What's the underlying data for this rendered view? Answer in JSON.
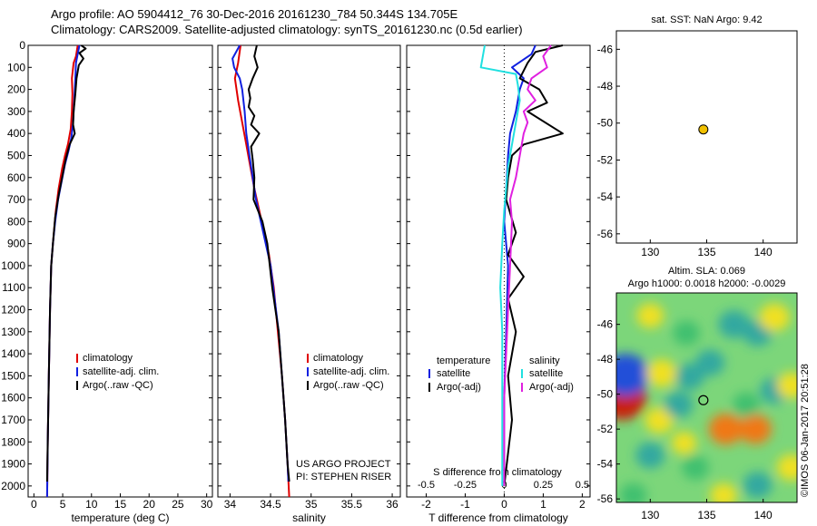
{
  "header": {
    "line1": "Argo profile: AO 5904412_76 30-Dec-2016 20161230_784 50.344S 134.705E",
    "line2": "Climatology: CARS2009. Satellite-adjusted climatology: synTS_20161230.nc (0.5d earlier)"
  },
  "colors": {
    "climatology": "#e00000",
    "satellite": "#1020e0",
    "argo": "#000000",
    "sat_cyan": "#20e0e0",
    "argo_magenta": "#e020e0",
    "marker": "#f0c000"
  },
  "depth_axis": {
    "ticks": [
      0,
      100,
      200,
      300,
      400,
      500,
      600,
      700,
      800,
      900,
      1000,
      1100,
      1200,
      1300,
      1400,
      1500,
      1600,
      1700,
      1800,
      1900,
      2000
    ],
    "range": [
      0,
      2050
    ]
  },
  "chart_data": [
    {
      "type": "line",
      "xlabel": "temperature (deg C)",
      "xlim": [
        -1,
        31
      ],
      "xticks": [
        0,
        5,
        10,
        15,
        20,
        25,
        30
      ],
      "ylim": [
        2050,
        0
      ],
      "legend": [
        "climatology",
        "satellite-adj. clim.",
        "Argo(..raw -QC)"
      ],
      "series": [
        {
          "name": "climatology",
          "points": [
            [
              7.6,
              0
            ],
            [
              7.3,
              50
            ],
            [
              6.9,
              80
            ],
            [
              6.6,
              150
            ],
            [
              6.7,
              220
            ],
            [
              6.6,
              300
            ],
            [
              6.4,
              380
            ],
            [
              5.9,
              450
            ],
            [
              5.4,
              500
            ],
            [
              4.9,
              560
            ],
            [
              4.3,
              650
            ],
            [
              3.8,
              750
            ],
            [
              3.3,
              900
            ],
            [
              3.0,
              1000
            ],
            [
              2.8,
              1200
            ],
            [
              2.6,
              1500
            ],
            [
              2.4,
              1800
            ],
            [
              2.3,
              2050
            ]
          ]
        },
        {
          "name": "satellite-adj. clim.",
          "points": [
            [
              7.9,
              0
            ],
            [
              7.6,
              40
            ],
            [
              7.3,
              80
            ],
            [
              7.2,
              150
            ],
            [
              7.0,
              250
            ],
            [
              6.8,
              350
            ],
            [
              6.5,
              420
            ],
            [
              6.0,
              480
            ],
            [
              5.4,
              540
            ],
            [
              4.8,
              620
            ],
            [
              4.2,
              700
            ],
            [
              3.7,
              800
            ],
            [
              3.3,
              900
            ],
            [
              3.0,
              1000
            ],
            [
              2.8,
              1200
            ],
            [
              2.6,
              1500
            ],
            [
              2.4,
              1800
            ],
            [
              2.3,
              2050
            ]
          ]
        },
        {
          "name": "Argo(..raw -QC)",
          "points": [
            [
              8.2,
              0
            ],
            [
              9.0,
              15
            ],
            [
              7.9,
              35
            ],
            [
              8.6,
              60
            ],
            [
              7.8,
              90
            ],
            [
              7.4,
              150
            ],
            [
              7.2,
              220
            ],
            [
              6.9,
              300
            ],
            [
              6.8,
              360
            ],
            [
              7.1,
              400
            ],
            [
              6.2,
              450
            ],
            [
              5.5,
              520
            ],
            [
              4.9,
              600
            ],
            [
              4.3,
              680
            ],
            [
              3.7,
              780
            ],
            [
              3.3,
              900
            ],
            [
              3.0,
              1000
            ],
            [
              2.8,
              1200
            ],
            [
              2.6,
              1500
            ],
            [
              2.4,
              1800
            ],
            [
              2.3,
              1980
            ]
          ]
        }
      ]
    },
    {
      "type": "line",
      "xlabel": "salinity",
      "xlim": [
        33.85,
        36.1
      ],
      "xticks": [
        34,
        34.5,
        35,
        35.5,
        36
      ],
      "ylim": [
        2050,
        0
      ],
      "legend": [
        "climatology",
        "satellite-adj. clim.",
        "Argo(..raw -QC)"
      ],
      "footer": [
        "US ARGO PROJECT",
        "PI: STEPHEN RISER"
      ],
      "series": [
        {
          "name": "climatology",
          "points": [
            [
              34.13,
              0
            ],
            [
              34.1,
              80
            ],
            [
              34.06,
              150
            ],
            [
              34.1,
              250
            ],
            [
              34.15,
              350
            ],
            [
              34.2,
              450
            ],
            [
              34.25,
              550
            ],
            [
              34.3,
              650
            ],
            [
              34.36,
              750
            ],
            [
              34.42,
              850
            ],
            [
              34.48,
              950
            ],
            [
              34.54,
              1100
            ],
            [
              34.59,
              1300
            ],
            [
              34.64,
              1500
            ],
            [
              34.68,
              1700
            ],
            [
              34.71,
              1900
            ],
            [
              34.73,
              2050
            ]
          ]
        },
        {
          "name": "satellite-adj. clim.",
          "points": [
            [
              34.12,
              0
            ],
            [
              34.03,
              60
            ],
            [
              34.05,
              100
            ],
            [
              34.12,
              150
            ],
            [
              34.15,
              200
            ],
            [
              34.18,
              300
            ],
            [
              34.2,
              400
            ],
            [
              34.24,
              500
            ],
            [
              34.28,
              600
            ],
            [
              34.32,
              700
            ],
            [
              34.38,
              800
            ],
            [
              34.44,
              900
            ],
            [
              34.5,
              1000
            ],
            [
              34.55,
              1150
            ],
            [
              34.6,
              1300
            ],
            [
              34.64,
              1500
            ],
            [
              34.68,
              1700
            ],
            [
              34.71,
              1900
            ],
            [
              34.72,
              1980
            ]
          ]
        },
        {
          "name": "Argo(..raw -QC)",
          "points": [
            [
              34.33,
              0
            ],
            [
              34.3,
              50
            ],
            [
              34.34,
              100
            ],
            [
              34.28,
              150
            ],
            [
              34.23,
              200
            ],
            [
              34.25,
              240
            ],
            [
              34.23,
              280
            ],
            [
              34.3,
              320
            ],
            [
              34.26,
              360
            ],
            [
              34.36,
              400
            ],
            [
              34.26,
              460
            ],
            [
              34.28,
              520
            ],
            [
              34.3,
              600
            ],
            [
              34.29,
              700
            ],
            [
              34.4,
              800
            ],
            [
              34.46,
              900
            ],
            [
              34.49,
              1000
            ],
            [
              34.52,
              1100
            ],
            [
              34.56,
              1200
            ],
            [
              34.6,
              1300
            ],
            [
              34.64,
              1500
            ],
            [
              34.68,
              1700
            ],
            [
              34.71,
              1900
            ],
            [
              34.73,
              1980
            ]
          ]
        }
      ]
    },
    {
      "type": "line",
      "xlabel": "T difference from climatology",
      "xlabel2": "S difference from climatology",
      "xlim": [
        -2.5,
        2.2
      ],
      "xticks": [
        -2,
        -1,
        0,
        1,
        2
      ],
      "xticks_s": [
        -0.5,
        -0.25,
        0,
        0.25,
        0.5
      ],
      "ylim": [
        2050,
        0
      ],
      "legend_groups": [
        {
          "title": "temperature",
          "items": [
            "satellite",
            "Argo(-adj)"
          ]
        },
        {
          "title": "salinity",
          "items": [
            "satellite",
            "Argo(-adj)"
          ]
        }
      ],
      "series": [
        {
          "name": "satellite",
          "group": "temperature",
          "points": [
            [
              0.8,
              0
            ],
            [
              0.7,
              40
            ],
            [
              0.2,
              100
            ],
            [
              0.5,
              150
            ],
            [
              0.4,
              200
            ],
            [
              0.3,
              300
            ],
            [
              0.15,
              400
            ],
            [
              0.1,
              500
            ],
            [
              0.05,
              650
            ],
            [
              0.0,
              800
            ],
            [
              0.1,
              1000
            ],
            [
              0.05,
              1300
            ],
            [
              0.0,
              1600
            ],
            [
              0.0,
              2000
            ]
          ]
        },
        {
          "name": "Argo(-adj)",
          "group": "temperature",
          "points": [
            [
              1.5,
              0
            ],
            [
              0.8,
              30
            ],
            [
              0.6,
              80
            ],
            [
              0.4,
              150
            ],
            [
              0.9,
              200
            ],
            [
              1.1,
              260
            ],
            [
              0.6,
              300
            ],
            [
              1.5,
              400
            ],
            [
              0.5,
              450
            ],
            [
              0.2,
              500
            ],
            [
              0.1,
              600
            ],
            [
              0.05,
              700
            ],
            [
              0.3,
              850
            ],
            [
              0.1,
              950
            ],
            [
              0.5,
              1050
            ],
            [
              0.1,
              1150
            ],
            [
              0.3,
              1300
            ],
            [
              0.1,
              1500
            ],
            [
              0.2,
              1700
            ],
            [
              0.0,
              2000
            ]
          ]
        },
        {
          "name": "satellite",
          "group": "salinity",
          "points": [
            [
              -0.5,
              0
            ],
            [
              -0.6,
              100
            ],
            [
              0.3,
              130
            ],
            [
              0.35,
              180
            ],
            [
              0.4,
              250
            ],
            [
              0.3,
              350
            ],
            [
              0.2,
              450
            ],
            [
              0.1,
              550
            ],
            [
              0.05,
              650
            ],
            [
              0.0,
              750
            ],
            [
              -0.05,
              900
            ],
            [
              -0.1,
              1100
            ],
            [
              -0.05,
              1300
            ],
            [
              -0.05,
              1600
            ],
            [
              -0.05,
              2000
            ]
          ]
        },
        {
          "name": "Argo(-adj)",
          "group": "salinity",
          "points": [
            [
              1.2,
              0
            ],
            [
              1.0,
              50
            ],
            [
              1.1,
              100
            ],
            [
              0.7,
              150
            ],
            [
              0.6,
              200
            ],
            [
              0.8,
              250
            ],
            [
              0.5,
              300
            ],
            [
              0.6,
              350
            ],
            [
              0.5,
              400
            ],
            [
              0.4,
              500
            ],
            [
              0.3,
              600
            ],
            [
              0.15,
              700
            ],
            [
              0.2,
              800
            ],
            [
              0.15,
              1000
            ],
            [
              0.1,
              1200
            ],
            [
              0.05,
              1400
            ],
            [
              0.0,
              1600
            ],
            [
              0.0,
              2000
            ]
          ]
        }
      ]
    },
    {
      "type": "scatter",
      "title": "sat. SST: NaN Argo: 9.42",
      "xlim": [
        127,
        143
      ],
      "ylim": [
        -56.5,
        -45
      ],
      "xticks": [
        130,
        135,
        140
      ],
      "yticks": [
        -46,
        -48,
        -50,
        -52,
        -54,
        -56
      ],
      "points": [
        [
          134.705,
          -50.344
        ]
      ]
    },
    {
      "type": "heatmap",
      "title": "Altim. SLA: 0.069",
      "subtitle": "Argo h1000: 0.0018 h2000: -0.0029",
      "xlim": [
        127,
        143
      ],
      "ylim": [
        -56.2,
        -44.2
      ],
      "xticks": [
        130,
        135,
        140
      ],
      "yticks": [
        -46,
        -48,
        -50,
        -52,
        -54,
        -56
      ],
      "marker": [
        134.705,
        -50.344
      ],
      "blobs": [
        {
          "x": 127.5,
          "y": -50.2,
          "v": 1.6
        },
        {
          "x": 127.8,
          "y": -48.9,
          "v": -1.5
        },
        {
          "x": 131.0,
          "y": -48.8,
          "v": 0.6
        },
        {
          "x": 133.5,
          "y": -49.0,
          "v": -0.5
        },
        {
          "x": 135.3,
          "y": -48.2,
          "v": -0.5
        },
        {
          "x": 137.4,
          "y": -46.0,
          "v": -0.6
        },
        {
          "x": 139.5,
          "y": -46.5,
          "v": -0.5
        },
        {
          "x": 141.0,
          "y": -45.6,
          "v": 0.6
        },
        {
          "x": 133.2,
          "y": -46.5,
          "v": -0.4
        },
        {
          "x": 130.0,
          "y": -45.5,
          "v": 0.4
        },
        {
          "x": 141.0,
          "y": -49.8,
          "v": -0.5
        },
        {
          "x": 142.5,
          "y": -49.5,
          "v": 0.5
        },
        {
          "x": 130.8,
          "y": -51.5,
          "v": 0.5
        },
        {
          "x": 132.5,
          "y": -50.6,
          "v": -0.5
        },
        {
          "x": 136.7,
          "y": -52.0,
          "v": 0.8
        },
        {
          "x": 139.3,
          "y": -52.0,
          "v": 0.7
        },
        {
          "x": 138.5,
          "y": -50.6,
          "v": -0.4
        },
        {
          "x": 130.0,
          "y": -53.5,
          "v": -0.5
        },
        {
          "x": 134.0,
          "y": -54.2,
          "v": -0.4
        },
        {
          "x": 139.5,
          "y": -55.2,
          "v": -0.5
        },
        {
          "x": 142.5,
          "y": -54.2,
          "v": 0.5
        },
        {
          "x": 128.5,
          "y": -55.8,
          "v": -0.4
        },
        {
          "x": 136.5,
          "y": -55.8,
          "v": 0.4
        },
        {
          "x": 133.0,
          "y": -52.8,
          "v": 0.3
        }
      ]
    }
  ],
  "footer": {
    "timestamp": "©IMOS 06-Jan-2017 20:51:28"
  }
}
